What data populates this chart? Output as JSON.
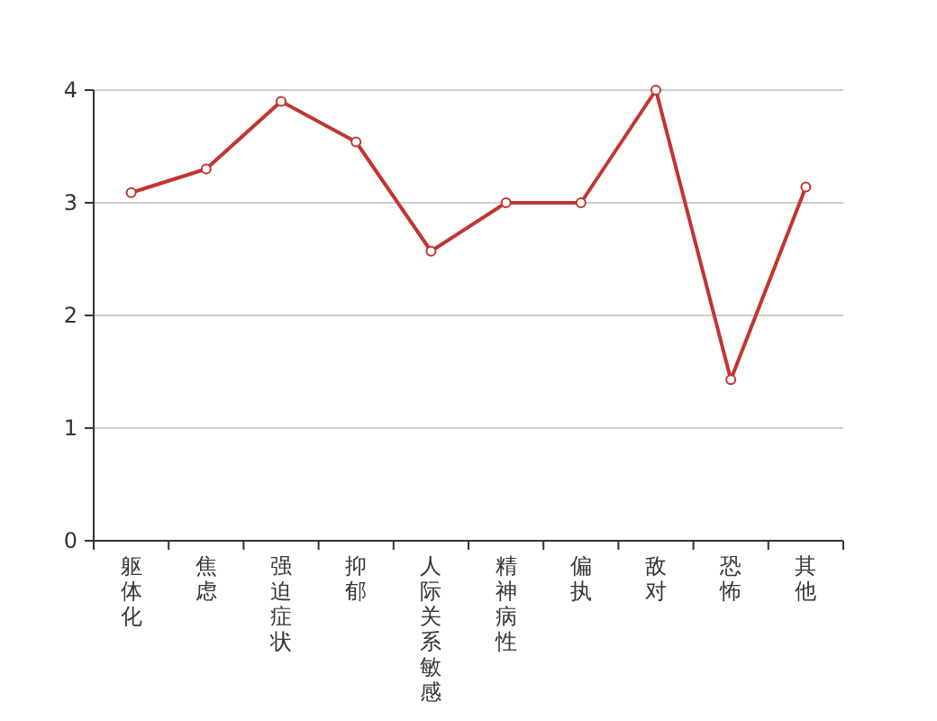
{
  "chart_data": {
    "type": "line",
    "categories": [
      "躯体化",
      "焦虑",
      "强迫症状",
      "抑郁",
      "人际关系敏感",
      "精神病性",
      "偏执",
      "敌对",
      "恐怖",
      "其他"
    ],
    "series": [
      {
        "color": "#c23531",
        "values": [
          3.09,
          3.3,
          3.9,
          3.54,
          2.57,
          3.0,
          3.0,
          4.0,
          1.43,
          3.14
        ]
      }
    ],
    "ylim": [
      0,
      4
    ],
    "yticks": [
      0,
      1,
      2,
      3,
      4
    ],
    "grid": "y",
    "marker": "circle",
    "line_style": "solid"
  }
}
